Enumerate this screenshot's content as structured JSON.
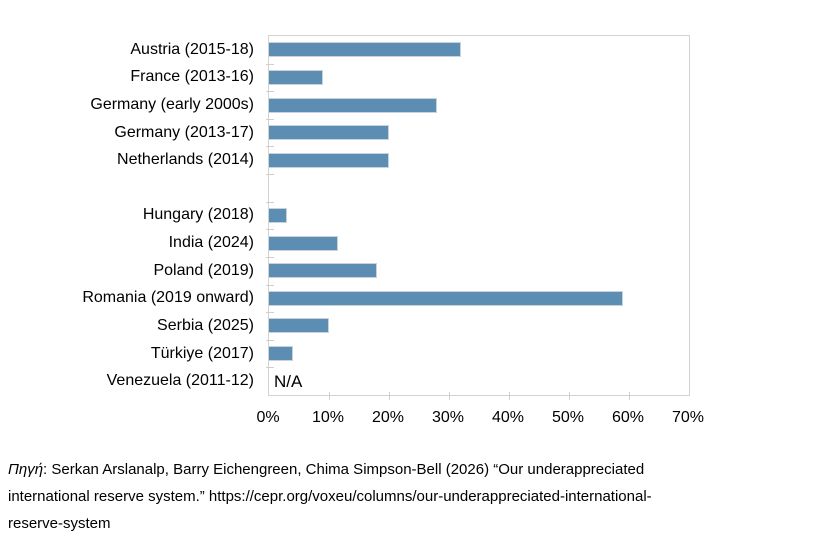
{
  "chart_data": {
    "type": "bar",
    "orientation": "horizontal",
    "title": "",
    "xlabel": "",
    "ylabel": "",
    "categories": [
      "Austria (2015-18)",
      "France (2013-16)",
      "Germany (early 2000s)",
      "Germany (2013-17)",
      "Netherlands (2014)",
      "",
      "Hungary (2018)",
      "India (2024)",
      "Poland (2019)",
      "Romania (2019 onward)",
      "Serbia (2025)",
      "Türkiye (2017)",
      "Venezuela (2011-12)"
    ],
    "values": [
      32,
      9,
      28,
      20,
      20,
      null,
      3,
      11.5,
      18,
      59,
      10,
      4,
      null
    ],
    "na_label": "N/A",
    "na_category": "Venezuela (2011-12)",
    "xlim": [
      0,
      70
    ],
    "x_tick_step": 10,
    "x_tick_labels": [
      "0%",
      "10%",
      "20%",
      "30%",
      "40%",
      "50%",
      "60%",
      "70%"
    ],
    "bar_color": "#5c8db2",
    "axis_color": "#d2d2d2",
    "grid": false,
    "legend": false
  },
  "footer": {
    "source_label": "Πηγή",
    "line1_rest": ": Serkan Arslanalp, Barry Eichengreen, Chima Simpson-Bell (2026) “Our underappreciated",
    "line2": "international reserve system.” https://cepr.org/voxeu/columns/our-underappreciated-international-",
    "line3": "reserve-system"
  }
}
